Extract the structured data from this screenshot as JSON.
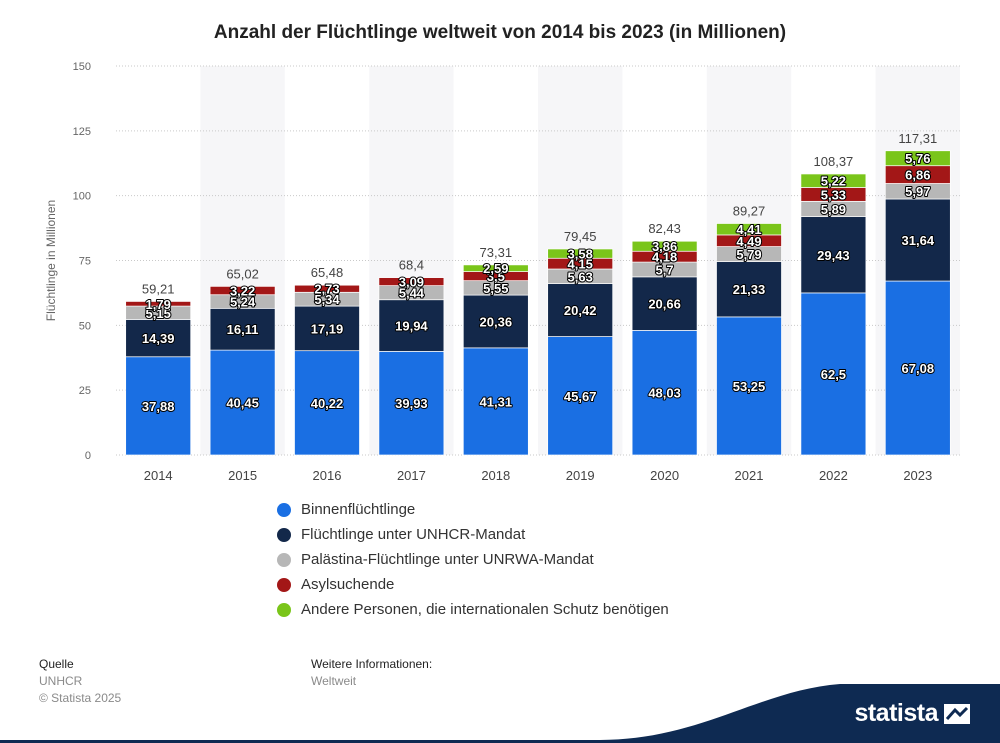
{
  "chart_data": {
    "type": "bar",
    "stacked": true,
    "title": "Anzahl der Flüchtlinge weltweit von 2014 bis 2023 (in Millionen)",
    "xlabel": "",
    "ylabel": "Flüchtlinge in Millionen",
    "ylim": [
      0,
      150
    ],
    "yticks": [
      "0",
      "25",
      "50",
      "75",
      "100",
      "125",
      "150"
    ],
    "grid": true,
    "legend_position": "bottom",
    "categories": [
      "2014",
      "2015",
      "2016",
      "2017",
      "2018",
      "2019",
      "2020",
      "2021",
      "2022",
      "2023"
    ],
    "series": [
      {
        "name": "Binnenflüchtlinge",
        "color": "#1a6fe3",
        "values": [
          37.88,
          40.45,
          40.22,
          39.93,
          41.31,
          45.67,
          48.03,
          53.25,
          62.5,
          67.08
        ],
        "labels": [
          "37,88",
          "40,45",
          "40,22",
          "39,93",
          "41,31",
          "45,67",
          "48,03",
          "53,25",
          "62,5",
          "67,08"
        ]
      },
      {
        "name": "Flüchtlinge unter UNHCR-Mandat",
        "color": "#13284a",
        "values": [
          14.39,
          16.11,
          17.19,
          19.94,
          20.36,
          20.42,
          20.66,
          21.33,
          29.43,
          31.64
        ],
        "labels": [
          "14,39",
          "16,11",
          "17,19",
          "19,94",
          "20,36",
          "20,42",
          "20,66",
          "21,33",
          "29,43",
          "31,64"
        ]
      },
      {
        "name": "Palästina-Flüchtlinge unter UNRWA-Mandat",
        "color": "#b7b7b7",
        "values": [
          5.15,
          5.24,
          5.34,
          5.44,
          5.55,
          5.63,
          5.7,
          5.79,
          5.89,
          5.97
        ],
        "labels": [
          "5,15",
          "5,24",
          "5,34",
          "5,44",
          "5,55",
          "5,63",
          "5,7",
          "5,79",
          "5,89",
          "5,97"
        ]
      },
      {
        "name": "Asylsuchende",
        "color": "#a31717",
        "values": [
          1.79,
          3.22,
          2.73,
          3.09,
          3.5,
          4.15,
          4.18,
          4.49,
          5.33,
          6.86
        ],
        "labels": [
          "1,79",
          "3,22",
          "2,73",
          "3,09",
          "3,5",
          "4,15",
          "4,18",
          "4,49",
          "5,33",
          "6,86"
        ]
      },
      {
        "name": "Andere Personen, die internationalen Schutz benötigen",
        "color": "#7ac51a",
        "values": [
          0,
          0,
          0,
          0,
          2.59,
          3.58,
          3.86,
          4.41,
          5.22,
          5.76
        ],
        "labels": [
          "",
          "",
          "",
          "",
          "2,59",
          "3,58",
          "3,86",
          "4,41",
          "5,22",
          "5,76"
        ]
      }
    ],
    "totals": [
      59.21,
      65.02,
      65.48,
      68.4,
      73.31,
      79.45,
      82.43,
      89.27,
      108.37,
      117.31
    ],
    "total_labels": [
      "59,21",
      "65,02",
      "65,48",
      "68,4",
      "73,31",
      "79,45",
      "82,43",
      "89,27",
      "108,37",
      "117,31"
    ]
  },
  "footer": {
    "source_heading": "Quelle",
    "source": "UNHCR",
    "copyright": "© Statista 2025",
    "info_heading": "Weitere Informationen:",
    "info": "Weltweit"
  },
  "brand": {
    "name": "statista",
    "band_color": "#0e2a52"
  }
}
